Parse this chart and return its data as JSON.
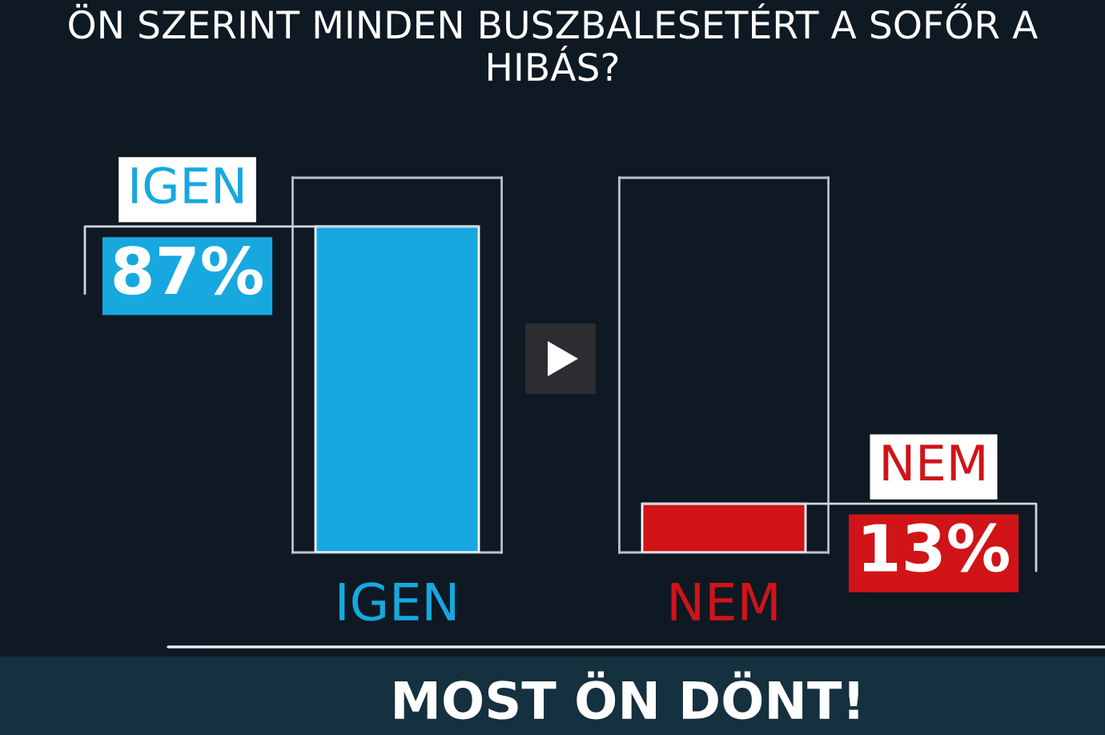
{
  "chart_data": {
    "type": "bar",
    "title": "ÖN SZERINT MINDEN BUSZBALESETÉRT A SOFŐR A HIBÁS?",
    "categories": [
      "IGEN",
      "NEM"
    ],
    "values": [
      87,
      13
    ],
    "colors": [
      "#17a8df",
      "#d01418"
    ],
    "value_labels": [
      "87%",
      "13%"
    ],
    "ylim": [
      0,
      100
    ],
    "tick_labels": "x",
    "annotations": [
      "IGEN",
      "NEM",
      "MOST ÖN DÖNT!"
    ]
  }
}
